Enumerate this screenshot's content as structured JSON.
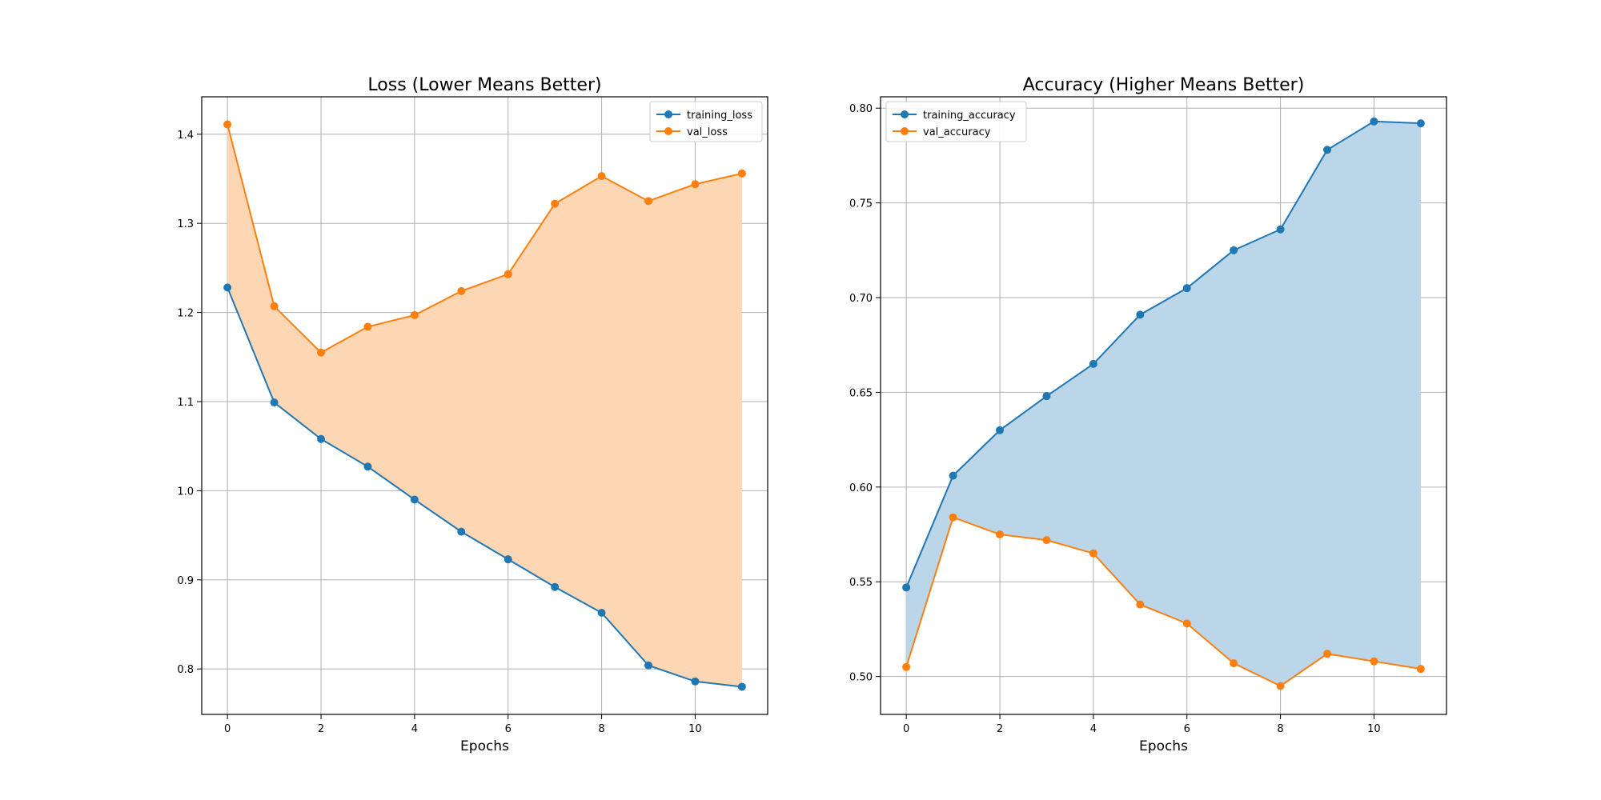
{
  "chart_data": [
    {
      "type": "line",
      "title": "Loss (Lower Means Better)",
      "xlabel": "Epochs",
      "ylabel": "",
      "xlim": [
        -0.55,
        11.55
      ],
      "ylim": [
        0.749,
        1.442
      ],
      "x": [
        0,
        1,
        2,
        3,
        4,
        5,
        6,
        7,
        8,
        9,
        10,
        11
      ],
      "xticks": [
        0,
        2,
        4,
        6,
        8,
        10
      ],
      "xtick_labels": [
        "0",
        "2",
        "4",
        "6",
        "8",
        "10"
      ],
      "yticks": [
        0.8,
        0.9,
        1.0,
        1.1,
        1.2,
        1.3,
        1.4
      ],
      "ytick_labels": [
        "0.8",
        "0.9",
        "1.0",
        "1.1",
        "1.2",
        "1.3",
        "1.4"
      ],
      "grid": true,
      "legend_position": "top-right",
      "fill_between": {
        "color": "#fdd7b4",
        "between": [
          "training_loss",
          "val_loss"
        ]
      },
      "series": [
        {
          "name": "training_loss",
          "color": "#1f77b4",
          "values": [
            1.228,
            1.099,
            1.058,
            1.027,
            0.99,
            0.954,
            0.923,
            0.892,
            0.863,
            0.804,
            0.786,
            0.78
          ]
        },
        {
          "name": "val_loss",
          "color": "#ff7f0e",
          "values": [
            1.411,
            1.207,
            1.155,
            1.184,
            1.197,
            1.224,
            1.243,
            1.322,
            1.353,
            1.325,
            1.344,
            1.356
          ]
        }
      ]
    },
    {
      "type": "line",
      "title": "Accuracy (Higher Means Better)",
      "xlabel": "Epochs",
      "ylabel": "",
      "xlim": [
        -0.55,
        11.55
      ],
      "ylim": [
        0.48,
        0.806
      ],
      "x": [
        0,
        1,
        2,
        3,
        4,
        5,
        6,
        7,
        8,
        9,
        10,
        11
      ],
      "xticks": [
        0,
        2,
        4,
        6,
        8,
        10
      ],
      "xtick_labels": [
        "0",
        "2",
        "4",
        "6",
        "8",
        "10"
      ],
      "yticks": [
        0.5,
        0.55,
        0.6,
        0.65,
        0.7,
        0.75,
        0.8
      ],
      "ytick_labels": [
        "0.50",
        "0.55",
        "0.60",
        "0.65",
        "0.70",
        "0.75",
        "0.80"
      ],
      "grid": true,
      "legend_position": "top-left",
      "fill_between": {
        "color": "#bbd5e9",
        "between": [
          "training_accuracy",
          "val_accuracy"
        ]
      },
      "series": [
        {
          "name": "training_accuracy",
          "color": "#1f77b4",
          "values": [
            0.547,
            0.606,
            0.63,
            0.648,
            0.665,
            0.691,
            0.705,
            0.725,
            0.736,
            0.778,
            0.793,
            0.792
          ]
        },
        {
          "name": "val_accuracy",
          "color": "#ff7f0e",
          "values": [
            0.505,
            0.584,
            0.575,
            0.572,
            0.565,
            0.538,
            0.528,
            0.507,
            0.495,
            0.512,
            0.508,
            0.504
          ]
        }
      ]
    }
  ]
}
